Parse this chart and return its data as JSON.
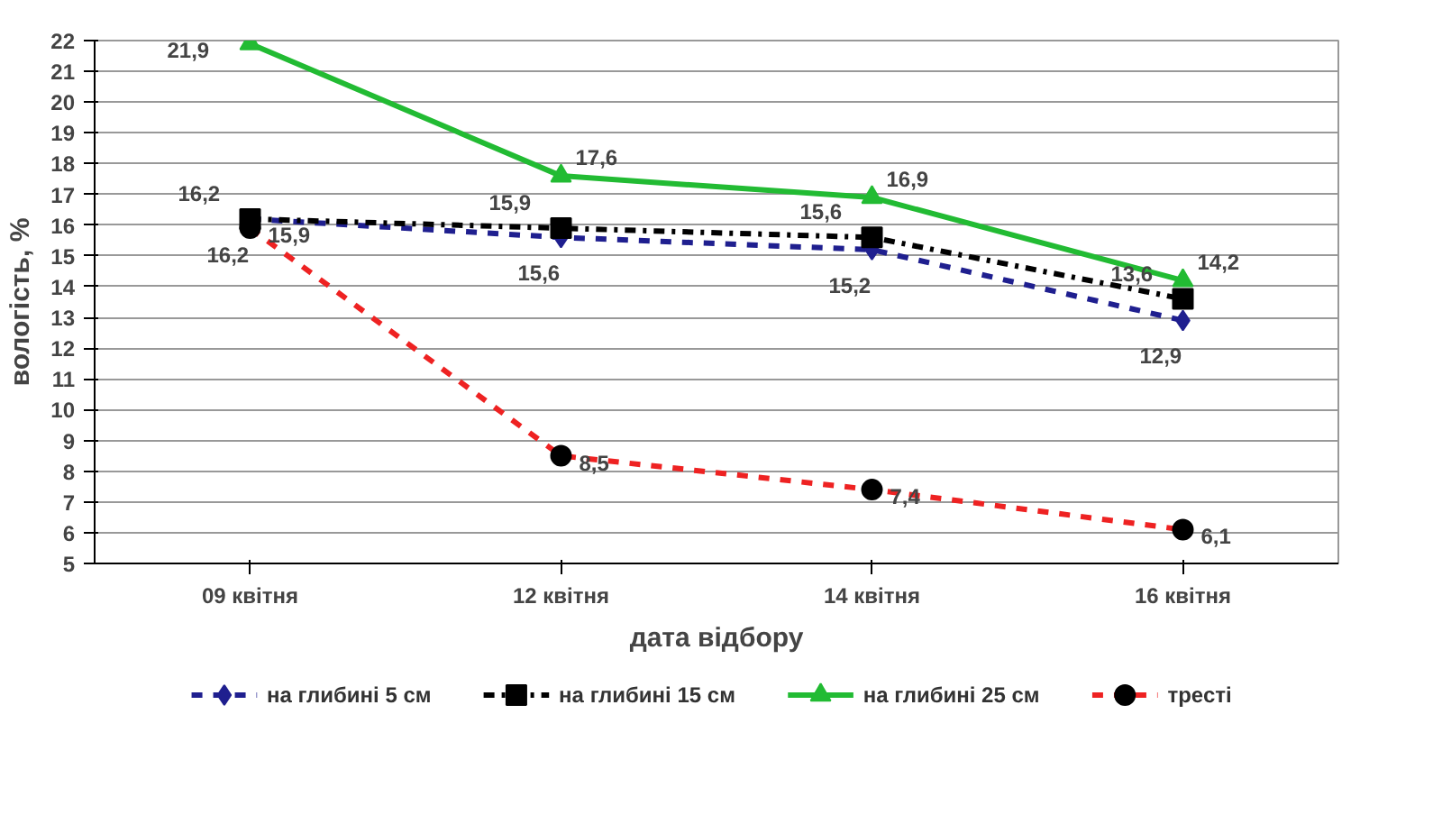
{
  "chart_data": {
    "type": "line",
    "xlabel": "дата відбору",
    "ylabel": "вологість, %",
    "categories": [
      "09 квітня",
      "12 квітня",
      "14 квітня",
      "16 квітня"
    ],
    "series": [
      {
        "name": "на глибині 5 см",
        "color": "#1f1f8f",
        "values": [
          16.2,
          15.6,
          15.2,
          12.9
        ],
        "value_labels": [
          "16,2",
          "15,6",
          "15,2",
          "12,9"
        ],
        "marker": "diamond",
        "line_style": "dashed"
      },
      {
        "name": "на глибині 15 см",
        "color": "#000000",
        "values": [
          16.2,
          15.9,
          15.6,
          13.6
        ],
        "value_labels": [
          "16,2",
          "15,9",
          "15,6",
          "13,6"
        ],
        "marker": "square",
        "line_style": "dashdot"
      },
      {
        "name": "на глибині 25 см",
        "color": "#22bb33",
        "values": [
          21.9,
          17.6,
          16.9,
          14.2
        ],
        "value_labels": [
          "21,9",
          "17,6",
          "16,9",
          "14,2"
        ],
        "marker": "triangle",
        "line_style": "solid"
      },
      {
        "name": "тресті",
        "color": "#ee2222",
        "values": [
          15.9,
          8.5,
          7.4,
          6.1
        ],
        "value_labels": [
          "15,9",
          "8,5",
          "7,4",
          "6,1"
        ],
        "marker": "circle",
        "line_style": "dashed"
      }
    ],
    "ylim": [
      5,
      22
    ],
    "yticks": [
      5,
      6,
      7,
      8,
      9,
      10,
      11,
      12,
      13,
      14,
      15,
      16,
      17,
      18,
      19,
      20,
      21,
      22
    ],
    "grid": "y",
    "legend": "bottom"
  }
}
